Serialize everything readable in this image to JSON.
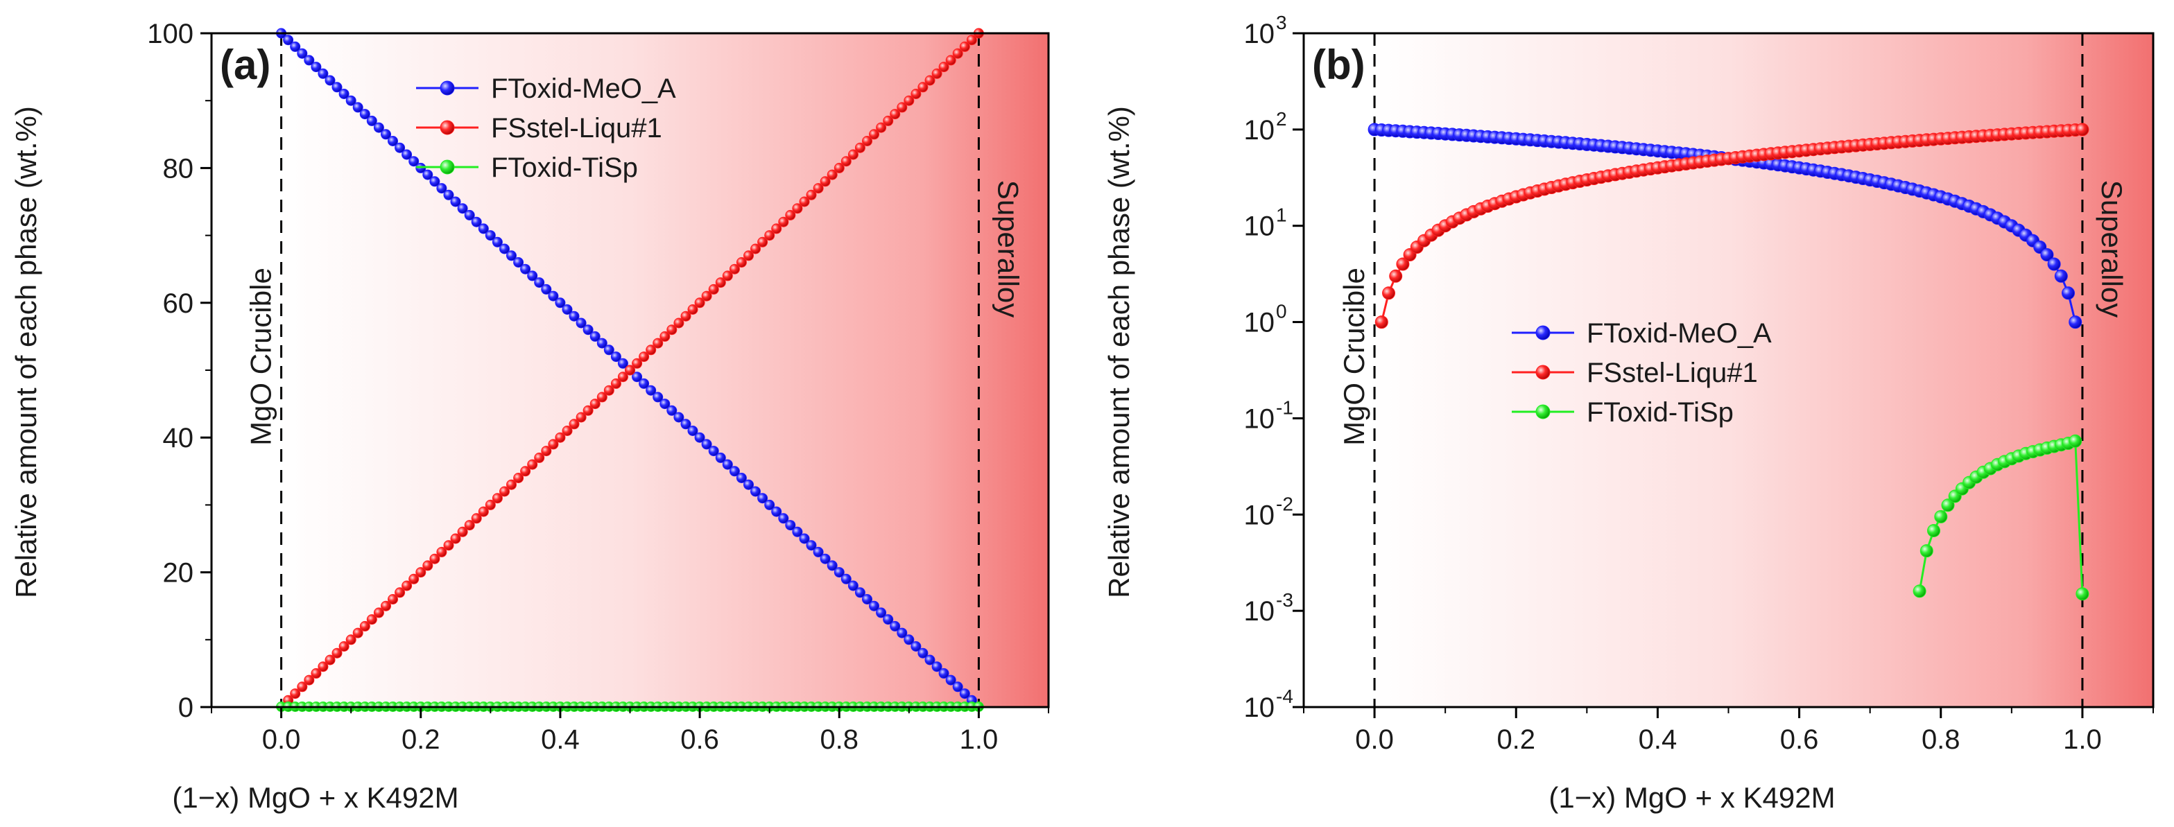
{
  "chart_data": [
    {
      "panel": "(a)",
      "type": "line",
      "scale": "linear",
      "xlabel": "(1−x) MgO + x K492M",
      "ylabel": "Relative amount of each phase (wt.%)",
      "xlim": [
        -0.1,
        1.1
      ],
      "ylim": [
        0,
        100
      ],
      "xticks": [
        "0.0",
        "0.2",
        "0.4",
        "0.6",
        "0.8",
        "1.0"
      ],
      "yticks": [
        "0",
        "20",
        "40",
        "60",
        "80",
        "100"
      ],
      "annotations": [
        "MgO Crucible",
        "Superalloy"
      ],
      "legend_position": "top-center",
      "series": [
        {
          "name": "FToxid-MeO_A",
          "color": "#1f1fff",
          "x_range": [
            0,
            0.99
          ],
          "step": 0.01,
          "rule": "y = 100*(1-x)"
        },
        {
          "name": "FSstel-Liqu#1",
          "color": "#ff2020",
          "x_range": [
            0.01,
            1.0
          ],
          "step": 0.01,
          "rule": "y = 100*x"
        },
        {
          "name": "FToxid-TiSp",
          "color": "#22ee22",
          "x_range": [
            0,
            1.0
          ],
          "step": 0.01,
          "rule": "y ≈ 0.05"
        }
      ]
    },
    {
      "panel": "(b)",
      "type": "line",
      "scale": "log",
      "xlabel": "(1−x) MgO + x K492M",
      "ylabel": "Relative amount of each phase (wt.%)",
      "xlim": [
        -0.1,
        1.1
      ],
      "ylim": [
        0.0001,
        1000
      ],
      "xticks": [
        "0.0",
        "0.2",
        "0.4",
        "0.6",
        "0.8",
        "1.0"
      ],
      "yticks": [
        {
          "base": "10",
          "exp": "3"
        },
        {
          "base": "10",
          "exp": "2"
        },
        {
          "base": "10",
          "exp": "1"
        },
        {
          "base": "10",
          "exp": "0"
        },
        {
          "base": "10",
          "exp": "-1"
        },
        {
          "base": "10",
          "exp": "-2"
        },
        {
          "base": "10",
          "exp": "-3"
        },
        {
          "base": "10",
          "exp": "-4"
        }
      ],
      "annotations": [
        "MgO Crucible",
        "Superalloy"
      ],
      "legend_position": "center",
      "series": [
        {
          "name": "FToxid-MeO_A",
          "color": "#1f1fff",
          "x_range": [
            0,
            0.99
          ],
          "step": 0.01,
          "rule": "y = 100*(1-x)"
        },
        {
          "name": "FSstel-Liqu#1",
          "color": "#ff2020",
          "x_range": [
            0.01,
            1.0
          ],
          "step": 0.01,
          "rule": "y = 100*x"
        },
        {
          "name": "FToxid-TiSp",
          "color": "#22ee22",
          "x": [
            0.77,
            0.78,
            0.79,
            0.8,
            0.81,
            0.82,
            0.83,
            0.84,
            0.85,
            0.86,
            0.87,
            0.88,
            0.89,
            0.9,
            0.91,
            0.92,
            0.93,
            0.94,
            0.95,
            0.96,
            0.97,
            0.98,
            0.99,
            1.0
          ],
          "y": [
            0.0016,
            0.0042,
            0.0068,
            0.0095,
            0.0125,
            0.0155,
            0.0185,
            0.0215,
            0.0245,
            0.0275,
            0.03,
            0.033,
            0.0355,
            0.038,
            0.0405,
            0.043,
            0.045,
            0.047,
            0.049,
            0.051,
            0.053,
            0.055,
            0.058,
            0.0015
          ]
        }
      ]
    }
  ]
}
